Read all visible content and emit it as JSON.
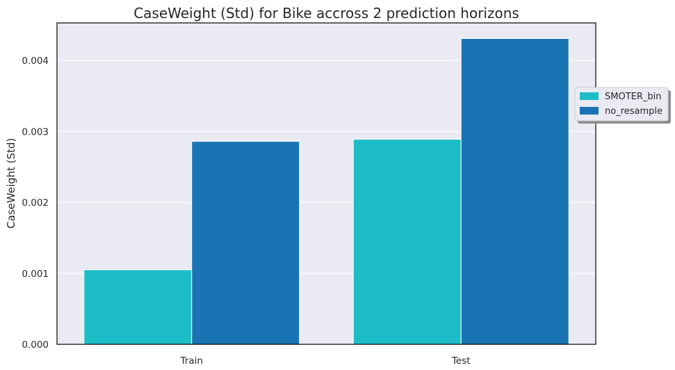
{
  "chart_data": {
    "type": "bar",
    "title": "CaseWeight (Std) for Bike accross 2 prediction horizons",
    "xlabel": "",
    "ylabel": "CaseWeight (Std)",
    "categories": [
      "Train",
      "Test"
    ],
    "series": [
      {
        "name": "SMOTER_bin",
        "values": [
          0.00105,
          0.00289
        ],
        "color": "#1cbdc6"
      },
      {
        "name": "no_resample",
        "values": [
          0.00286,
          0.00431
        ],
        "color": "#1a74b3"
      }
    ],
    "ylim": [
      0,
      0.00453
    ],
    "yticks": [
      0,
      0.001,
      0.002,
      0.003,
      0.004
    ],
    "ytick_labels": [
      "0.000",
      "0.001",
      "0.002",
      "0.003",
      "0.004"
    ],
    "grid": true,
    "legend_position": "right, outside the plot area"
  },
  "colors": {
    "plot_background": "#eaeaf2",
    "grid": "#ffffff",
    "axes_frame": "#000000"
  }
}
